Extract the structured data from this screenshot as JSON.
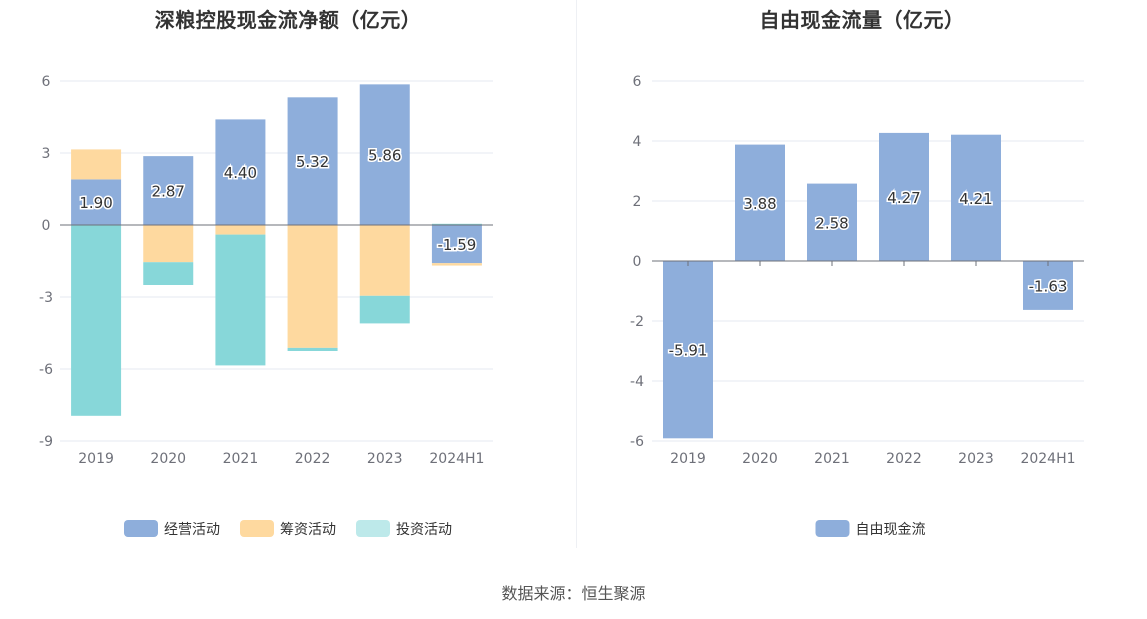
{
  "chart_data": [
    {
      "type": "bar",
      "stacked": true,
      "title": "深粮控股现金流净额（亿元）",
      "categories": [
        "2019",
        "2020",
        "2021",
        "2022",
        "2023",
        "2024H1"
      ],
      "series": [
        {
          "name": "经营活动",
          "color": "#8eaedb",
          "values": [
            1.9,
            2.87,
            4.4,
            5.32,
            5.86,
            -1.59
          ]
        },
        {
          "name": "筹资活动",
          "color": "#fed99f",
          "values": [
            1.25,
            -1.55,
            -0.4,
            -5.12,
            -2.95,
            -0.1
          ]
        },
        {
          "name": "投资活动",
          "color": "#87d7d9",
          "values": [
            -7.95,
            -0.95,
            -5.45,
            -0.13,
            -1.15,
            0.05
          ]
        }
      ],
      "data_labels_series": "经营活动",
      "ylim": [
        -9,
        6
      ],
      "yticks": [
        6,
        3,
        0,
        -3,
        -6,
        -9
      ],
      "grid": true,
      "legend": "bottom"
    },
    {
      "type": "bar",
      "title": "自由现金流量（亿元）",
      "categories": [
        "2019",
        "2020",
        "2021",
        "2022",
        "2023",
        "2024H1"
      ],
      "series": [
        {
          "name": "自由现金流",
          "color": "#8eaedb",
          "values": [
            -5.91,
            3.88,
            2.58,
            4.27,
            4.21,
            -1.63
          ]
        }
      ],
      "ylim": [
        -6,
        6
      ],
      "yticks": [
        6,
        4,
        2,
        0,
        -2,
        -4,
        -6
      ],
      "grid": true,
      "legend": "bottom"
    }
  ],
  "source_text": "数据来源：恒生聚源"
}
